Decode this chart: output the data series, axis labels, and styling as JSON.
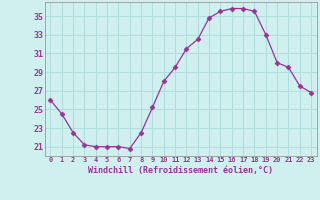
{
  "x": [
    0,
    1,
    2,
    3,
    4,
    5,
    6,
    7,
    8,
    9,
    10,
    11,
    12,
    13,
    14,
    15,
    16,
    17,
    18,
    19,
    20,
    21,
    22,
    23
  ],
  "y": [
    26.0,
    24.5,
    22.5,
    21.2,
    21.0,
    21.0,
    21.0,
    20.8,
    22.5,
    25.2,
    28.0,
    29.5,
    31.5,
    32.5,
    34.8,
    35.5,
    35.8,
    35.8,
    35.5,
    33.0,
    30.0,
    29.5,
    27.5,
    26.8
  ],
  "line_color": "#993399",
  "marker": "D",
  "marker_size": 2.5,
  "bg_color": "#d0f0f0",
  "grid_color": "#b0dede",
  "xlabel": "Windchill (Refroidissement éolien,°C)",
  "xlabel_color": "#993399",
  "tick_color": "#993399",
  "ylim": [
    20.0,
    36.5
  ],
  "xlim": [
    -0.5,
    23.5
  ],
  "yticks": [
    21,
    23,
    25,
    27,
    29,
    31,
    33,
    35
  ],
  "xticks": [
    0,
    1,
    2,
    3,
    4,
    5,
    6,
    7,
    8,
    9,
    10,
    11,
    12,
    13,
    14,
    15,
    16,
    17,
    18,
    19,
    20,
    21,
    22,
    23
  ]
}
